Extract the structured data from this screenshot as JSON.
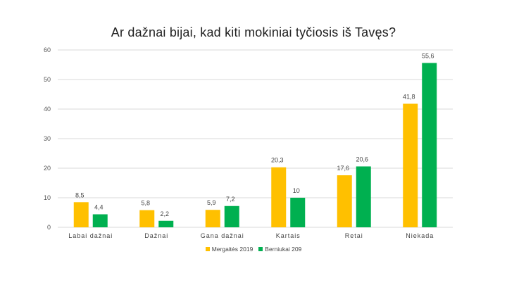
{
  "chart_data": {
    "type": "bar",
    "title": "Ar dažnai bijai, kad kiti mokiniai tyčiosis iš Tavęs?",
    "categories": [
      "Labai dažnai",
      "Dažnai",
      "Gana dažnai",
      "Kartais",
      "Retai",
      "Niekada"
    ],
    "series": [
      {
        "name": "Mergaitės 2019",
        "color": "#FFC000",
        "values": [
          8.5,
          5.8,
          5.9,
          20.3,
          17.6,
          41.8
        ],
        "labels": [
          "8,5",
          "5,8",
          "5,9",
          "20,3",
          "17,6",
          "41,8"
        ]
      },
      {
        "name": "Berniukai 209",
        "color": "#00B050",
        "values": [
          4.4,
          2.2,
          7.2,
          10,
          20.6,
          55.6
        ],
        "labels": [
          "4,4",
          "2,2",
          "7,2",
          "10",
          "20,6",
          "55,6"
        ]
      }
    ],
    "ylim": [
      0,
      60
    ],
    "yticks": [
      "0",
      "10",
      "20",
      "30",
      "40",
      "50",
      "60"
    ],
    "grid": true,
    "legend_position": "bottom"
  }
}
